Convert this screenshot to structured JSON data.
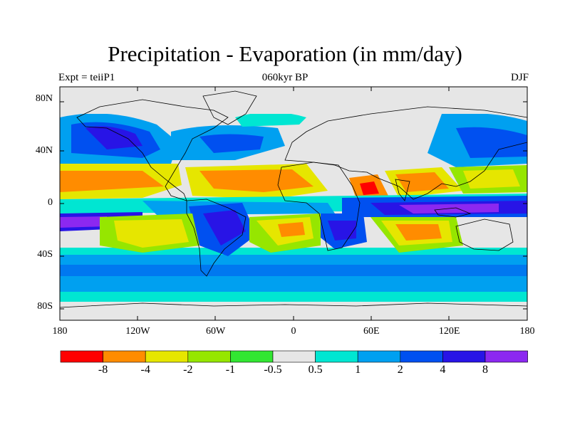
{
  "title": "Precipitation - Evaporation (in mm/day)",
  "left_string": "Expt = teiiP1",
  "center_string": "060kyr BP",
  "right_string": "DJF",
  "map": {
    "projection": "cylindrical equidistant",
    "lon_range": [
      -180,
      180
    ],
    "lat_range": [
      -90,
      90
    ],
    "lat_ticks": [
      {
        "value": 80,
        "label": "80N"
      },
      {
        "value": 40,
        "label": "40N"
      },
      {
        "value": 0,
        "label": "0"
      },
      {
        "value": -40,
        "label": "40S"
      },
      {
        "value": -80,
        "label": "80S"
      }
    ],
    "lon_ticks": [
      {
        "value": -180,
        "label": "180"
      },
      {
        "value": -120,
        "label": "120W"
      },
      {
        "value": -60,
        "label": "60W"
      },
      {
        "value": 0,
        "label": "0"
      },
      {
        "value": 60,
        "label": "60E"
      },
      {
        "value": 120,
        "label": "120E"
      },
      {
        "value": 180,
        "label": "180"
      }
    ]
  },
  "colorbar": {
    "colors": [
      "#ff0000",
      "#ff8c00",
      "#e6e600",
      "#96e600",
      "#32e632",
      "#e6e6e6",
      "#00e6d2",
      "#00a0f0",
      "#0050f0",
      "#2814e6",
      "#8c28f0"
    ],
    "labels": [
      "-8",
      "-4",
      "-2",
      "-1",
      "-0.5",
      "0.5",
      "1",
      "2",
      "4",
      "8"
    ]
  }
}
